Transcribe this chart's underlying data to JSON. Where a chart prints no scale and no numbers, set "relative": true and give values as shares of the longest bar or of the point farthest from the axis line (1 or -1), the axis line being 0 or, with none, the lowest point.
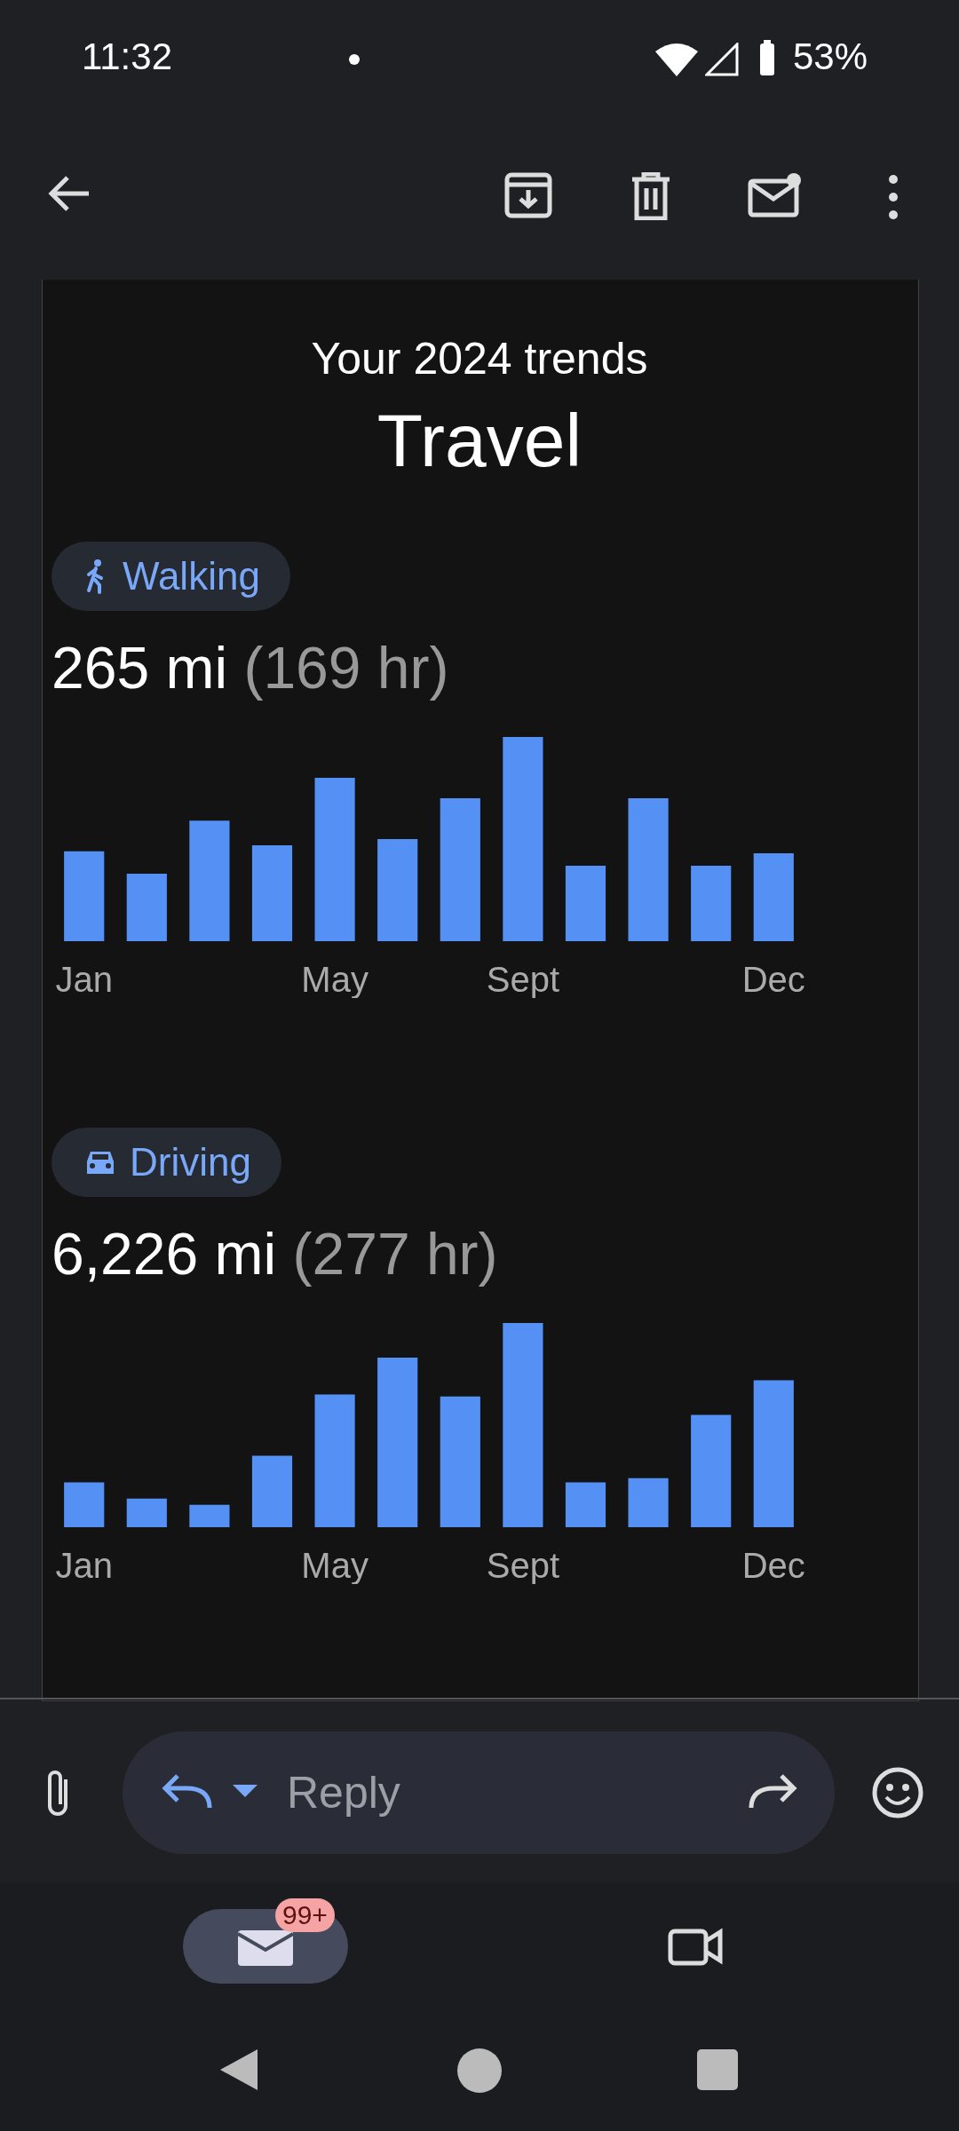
{
  "chart_data": [
    {
      "type": "bar",
      "title": "Walking",
      "subtitle": "265 mi (169 hr)",
      "annotations": [
        "Your 2024 trends",
        "Travel"
      ],
      "relative": true,
      "color": "#5591f5",
      "categories": [
        "Jan",
        null,
        null,
        null,
        "May",
        null,
        null,
        "Sept",
        null,
        null,
        null,
        "Dec"
      ],
      "values": [
        0.44,
        0.33,
        0.59,
        0.47,
        0.8,
        0.5,
        0.7,
        1,
        0.37,
        0.7,
        0.37,
        0.43
      ]
    },
    {
      "type": "bar",
      "title": "Driving",
      "subtitle": "6,226 mi (277 hr)",
      "relative": true,
      "color": "#5591f5",
      "categories": [
        "Jan",
        null,
        null,
        null,
        "May",
        null,
        null,
        "Sept",
        null,
        null,
        null,
        "Dec"
      ],
      "values": [
        0.22,
        0.14,
        0.11,
        0.35,
        0.65,
        0.83,
        0.64,
        1,
        0.22,
        0.24,
        0.55,
        0.72
      ]
    },
    {
      "type": "other",
      "annotations": [
        "11:32",
        "53%",
        "Reply",
        "99+"
      ]
    }
  ]
}
